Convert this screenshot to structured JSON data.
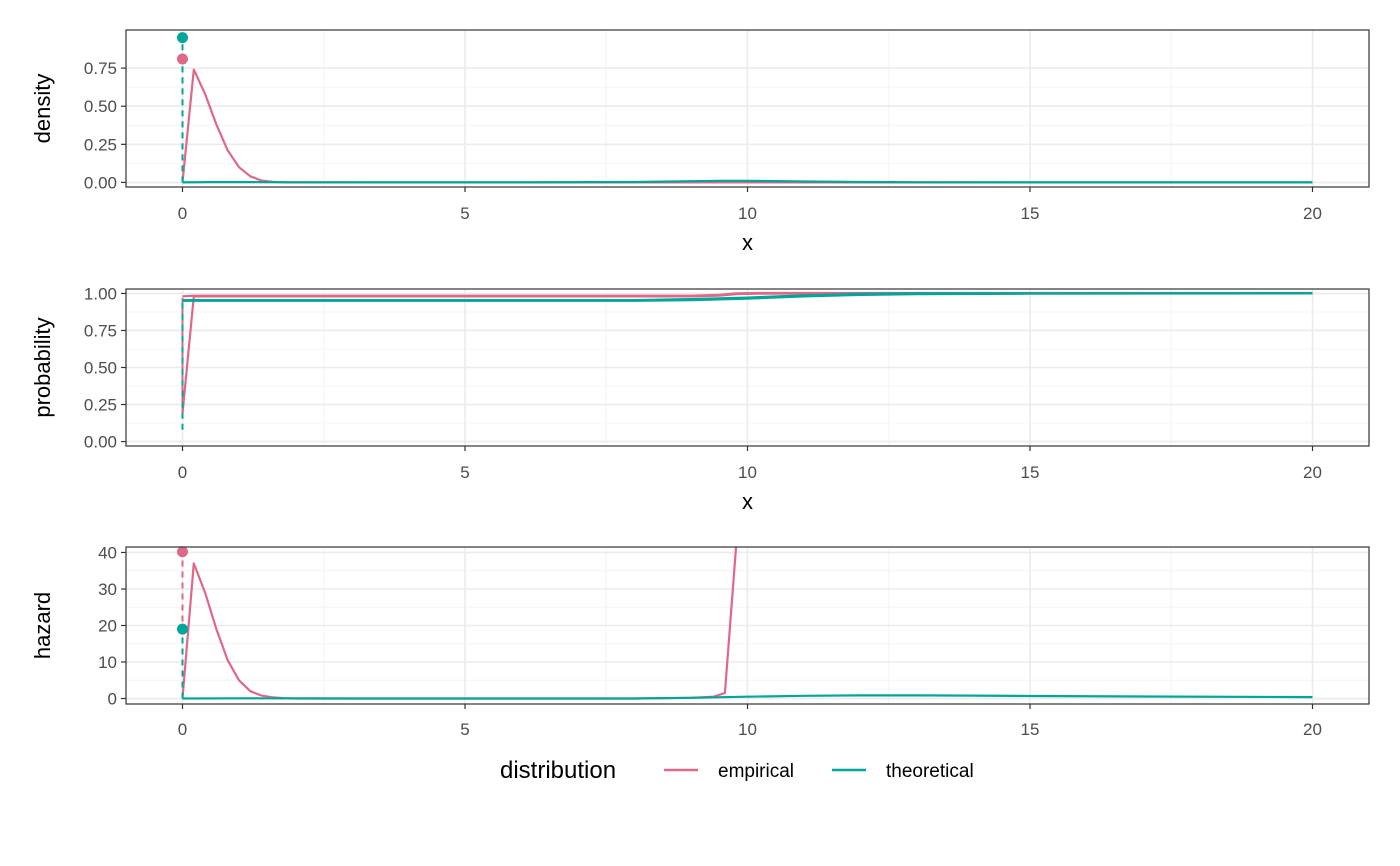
{
  "colors": {
    "empirical": "#df6889",
    "theoretical": "#00a698",
    "grid_major": "#ebebeb",
    "grid_minor": "#f4f4f4",
    "panel_border": "#333333"
  },
  "chart_data": [
    {
      "type": "line",
      "xlabel": "x",
      "ylabel": "density",
      "xlim": [
        -1,
        21
      ],
      "ylim": [
        -0.03,
        1.0
      ],
      "x_ticks": [
        0,
        5,
        10,
        15,
        20
      ],
      "x_tick_labels": [
        "0",
        "5",
        "10",
        "15",
        "20"
      ],
      "y_ticks": [
        0,
        0.25,
        0.5,
        0.75
      ],
      "y_tick_labels": [
        "0.00",
        "0.25",
        "0.50",
        "0.75"
      ],
      "grid": true,
      "series": [
        {
          "name": "empirical",
          "x": [
            0,
            0.2,
            0.4,
            0.6,
            0.8,
            1.0,
            1.2,
            1.4,
            1.6,
            1.8,
            2.0,
            3,
            5,
            8,
            10,
            12,
            15,
            20
          ],
          "y": [
            0,
            0.74,
            0.58,
            0.38,
            0.21,
            0.1,
            0.04,
            0.012,
            0.004,
            0.001,
            0,
            0,
            0,
            0,
            0,
            0,
            0,
            0
          ],
          "point": {
            "x": 0,
            "y": 0.81
          },
          "segment": {
            "x": 0,
            "y_from": 0,
            "y_to": 0.81
          }
        },
        {
          "name": "theoretical",
          "x": [
            0,
            0.5,
            1,
            2,
            4,
            6,
            8,
            9,
            9.5,
            10,
            10.5,
            11,
            12,
            13,
            15,
            17,
            20
          ],
          "y": [
            0,
            0.002,
            0.002,
            0.001,
            0,
            0,
            0.003,
            0.008,
            0.011,
            0.011,
            0.009,
            0.006,
            0.003,
            0.001,
            0,
            0,
            0
          ],
          "point": {
            "x": 0,
            "y": 0.95
          },
          "segment": {
            "x": 0,
            "y_from": 0,
            "y_to": 0.95
          }
        }
      ]
    },
    {
      "type": "line",
      "xlabel": "x",
      "ylabel": "probability",
      "xlim": [
        -1,
        21
      ],
      "ylim": [
        -0.03,
        1.03
      ],
      "x_ticks": [
        0,
        5,
        10,
        15,
        20
      ],
      "x_tick_labels": [
        "0",
        "5",
        "10",
        "15",
        "20"
      ],
      "y_ticks": [
        0,
        0.25,
        0.5,
        0.75,
        1.0
      ],
      "y_tick_labels": [
        "0.00",
        "0.25",
        "0.50",
        "0.75",
        "1.00"
      ],
      "grid": true,
      "series": [
        {
          "name": "empirical",
          "x": [
            0,
            0.2,
            2,
            5,
            9,
            9.5,
            9.8,
            10.2,
            12,
            15,
            20
          ],
          "y": [
            0.19,
            0.98,
            0.98,
            0.98,
            0.98,
            0.985,
            0.995,
            0.998,
            1.0,
            1.0,
            1.0
          ],
          "y_upper": [
            0.98,
            0.985,
            0.985,
            0.985,
            0.985,
            0.99,
            1.0,
            1.003,
            1.003,
            1.003,
            1.003
          ],
          "segment": {
            "x": 0,
            "y_from": 0.19,
            "y_to": 0.97
          }
        },
        {
          "name": "theoretical",
          "x": [
            0,
            0.05,
            2,
            5,
            8,
            9,
            10,
            11,
            12,
            13,
            15,
            20
          ],
          "y": [
            0.95,
            0.95,
            0.95,
            0.95,
            0.95,
            0.955,
            0.965,
            0.98,
            0.99,
            0.995,
            0.998,
            1.0
          ],
          "y_upper": [
            0.955,
            0.955,
            0.955,
            0.955,
            0.955,
            0.962,
            0.972,
            0.987,
            0.997,
            1.0,
            1.0,
            1.0
          ],
          "segment": {
            "x": 0,
            "y_from": 0.08,
            "y_to": 0.95
          }
        }
      ]
    },
    {
      "type": "line",
      "xlabel": "",
      "ylabel": "hazard",
      "xlim": [
        -1,
        21
      ],
      "ylim": [
        -1.5,
        41.5
      ],
      "x_ticks": [
        0,
        5,
        10,
        15,
        20
      ],
      "x_tick_labels": [
        "0",
        "5",
        "10",
        "15",
        "20"
      ],
      "y_ticks": [
        0,
        10,
        20,
        30,
        40
      ],
      "y_tick_labels": [
        "0",
        "10",
        "20",
        "30",
        "40"
      ],
      "grid": true,
      "series": [
        {
          "name": "empirical",
          "x": [
            0,
            0.2,
            0.4,
            0.6,
            0.8,
            1.0,
            1.2,
            1.4,
            1.6,
            1.8,
            2.0,
            3,
            5,
            8,
            9,
            9.4,
            9.6,
            9.8,
            9.9
          ],
          "y": [
            0,
            37,
            29,
            19,
            10.5,
            5,
            2,
            0.8,
            0.3,
            0.1,
            0,
            0,
            0,
            0,
            0.2,
            0.5,
            1.5,
            42,
            80
          ],
          "point": {
            "x": 0,
            "y": 40.2
          },
          "segment": {
            "x": 0,
            "y_from": 0,
            "y_to": 40.2
          }
        },
        {
          "name": "theoretical",
          "x": [
            0,
            1,
            3,
            5,
            7,
            8,
            9,
            10,
            11,
            12,
            13,
            14,
            15,
            17,
            20
          ],
          "y": [
            0,
            0.05,
            0,
            0,
            0,
            0.02,
            0.2,
            0.5,
            0.75,
            0.85,
            0.85,
            0.8,
            0.7,
            0.55,
            0.4
          ],
          "point": {
            "x": 0,
            "y": 19
          },
          "segment": {
            "x": 0,
            "y_from": 0,
            "y_to": 19
          }
        }
      ]
    }
  ],
  "legend": {
    "title": "distribution",
    "entries": [
      "empirical",
      "theoretical"
    ],
    "position": "bottom"
  }
}
